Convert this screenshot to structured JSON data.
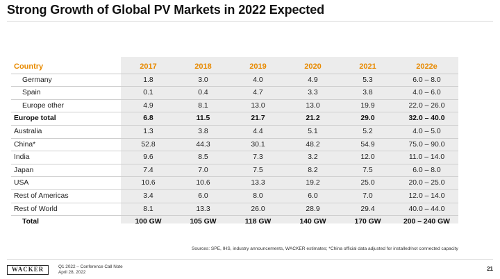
{
  "slide": {
    "title": "Strong Growth of Global PV Markets in 2022 Expected"
  },
  "table": {
    "header": {
      "country": "Country",
      "years": [
        "2017",
        "2018",
        "2019",
        "2020",
        "2021",
        "2022e"
      ]
    },
    "rows": [
      {
        "label": "Germany",
        "values": [
          "1.8",
          "3.0",
          "4.0",
          "4.9",
          "5.3",
          "6.0 – 8.0"
        ]
      },
      {
        "label": "Spain",
        "values": [
          "0.1",
          "0.4",
          "4.7",
          "3.3",
          "3.8",
          "4.0 – 6.0"
        ]
      },
      {
        "label": "Europe other",
        "values": [
          "4.9",
          "8.1",
          "13.0",
          "13.0",
          "19.9",
          "22.0 – 26.0"
        ]
      },
      {
        "label": "Europe total",
        "values": [
          "6.8",
          "11.5",
          "21.7",
          "21.2",
          "29.0",
          "32.0 – 40.0"
        ]
      },
      {
        "label": "Australia",
        "values": [
          "1.3",
          "3.8",
          "4.4",
          "5.1",
          "5.2",
          "4.0 – 5.0"
        ]
      },
      {
        "label": "China*",
        "values": [
          "52.8",
          "44.3",
          "30.1",
          "48.2",
          "54.9",
          "75.0 – 90.0"
        ]
      },
      {
        "label": "India",
        "values": [
          "9.6",
          "8.5",
          "7.3",
          "3.2",
          "12.0",
          "11.0 – 14.0"
        ]
      },
      {
        "label": "Japan",
        "values": [
          "7.4",
          "7.0",
          "7.5",
          "8.2",
          "7.5",
          "6.0 – 8.0"
        ]
      },
      {
        "label": "USA",
        "values": [
          "10.6",
          "10.6",
          "13.3",
          "19.2",
          "25.0",
          "20.0 – 25.0"
        ]
      },
      {
        "label": "Rest of Americas",
        "values": [
          "3.4",
          "6.0",
          "8.0",
          "6.0",
          "7.0",
          "12.0 – 14.0"
        ]
      },
      {
        "label": "Rest of World",
        "values": [
          "8.1",
          "13.3",
          "26.0",
          "28.9",
          "29.4",
          "40.0 – 44.0"
        ]
      },
      {
        "label": "Total",
        "values": [
          "100 GW",
          "105 GW",
          "118 GW",
          "140 GW",
          "170 GW",
          "200 – 240 GW"
        ]
      }
    ]
  },
  "sources": "Sources: SPE, IHS, industry announcements, WACKER estimates; *China official data adjusted for installed/not connected capacity",
  "footer": {
    "logo_text": "WACKER",
    "event": "Q1 2022 – Conference Call Note",
    "date": "April 28, 2022",
    "page_number": "21"
  },
  "colors": {
    "accent": "#e88a00",
    "shade": "#ececec"
  }
}
